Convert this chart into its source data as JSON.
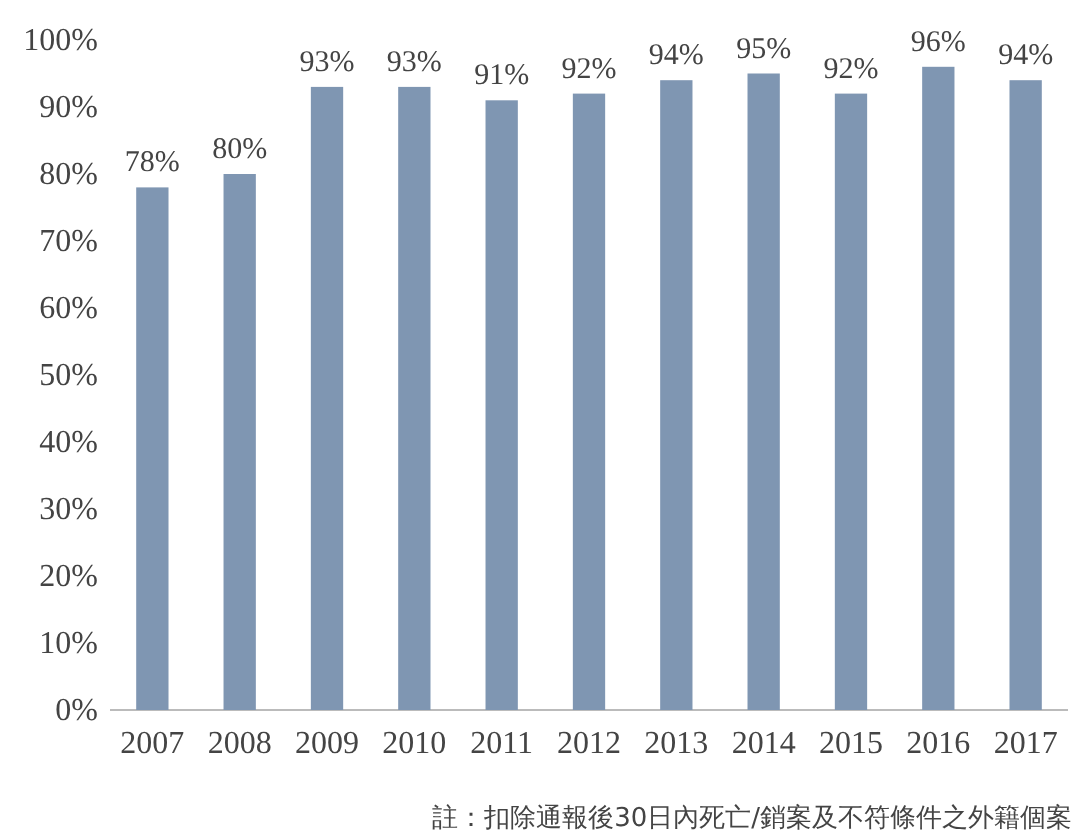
{
  "chart_data": {
    "type": "bar",
    "categories": [
      "2007",
      "2008",
      "2009",
      "2010",
      "2011",
      "2012",
      "2013",
      "2014",
      "2015",
      "2016",
      "2017"
    ],
    "values": [
      78,
      80,
      93,
      93,
      91,
      92,
      94,
      95,
      92,
      96,
      94
    ],
    "value_labels": [
      "78%",
      "80%",
      "93%",
      "93%",
      "91%",
      "92%",
      "94%",
      "95%",
      "92%",
      "96%",
      "94%"
    ],
    "color": "#7f96b2",
    "ylim": [
      0,
      100
    ],
    "yticks": [
      {
        "value": 0,
        "label": "0%"
      },
      {
        "value": 10,
        "label": "10%"
      },
      {
        "value": 20,
        "label": "20%"
      },
      {
        "value": 30,
        "label": "30%"
      },
      {
        "value": 40,
        "label": "40%"
      },
      {
        "value": 50,
        "label": "50%"
      },
      {
        "value": 60,
        "label": "60%"
      },
      {
        "value": 70,
        "label": "70%"
      },
      {
        "value": 80,
        "label": "80%"
      },
      {
        "value": 90,
        "label": "90%"
      },
      {
        "value": 100,
        "label": "100%"
      }
    ],
    "grid": false,
    "annotations": [
      "註：扣除通報後30日內死亡/銷案及不符條件之外籍個案"
    ]
  }
}
